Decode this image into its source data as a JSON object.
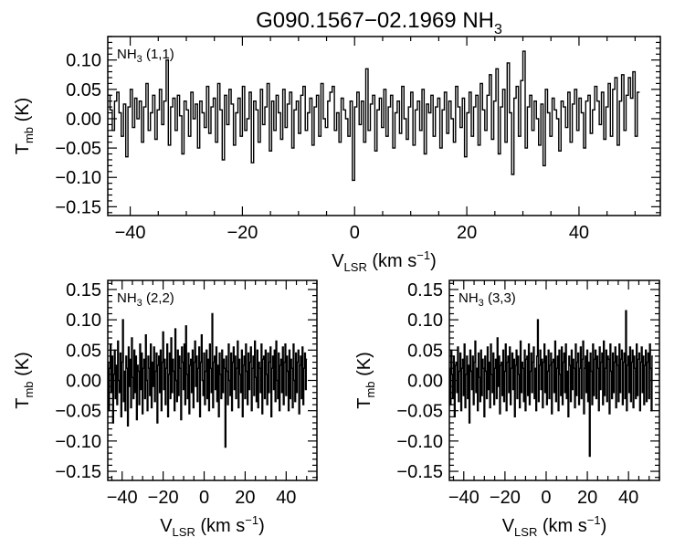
{
  "figure": {
    "title": "G090.1567−02.1969 NH",
    "title_sub": "3"
  },
  "chart_data": [
    {
      "type": "line",
      "step": true,
      "panel_label": "NH",
      "panel_label_sub": "3",
      "panel_label_suffix": " (1,1)",
      "xlabel": "V",
      "xlabel_sub": "LSR",
      "xlabel_suffix": " (km s",
      "xlabel_sup": "−1",
      "xlabel_end": ")",
      "ylabel": "T",
      "ylabel_sub": "mb",
      "ylabel_suffix": " (K)",
      "xlim": [
        -44,
        54.5
      ],
      "ylim": [
        -0.165,
        0.14
      ],
      "xticks": [
        -40,
        -20,
        0,
        20,
        40
      ],
      "xtick_labels": [
        "−40",
        "−20",
        "0",
        "20",
        "40"
      ],
      "yticks": [
        -0.15,
        -0.1,
        -0.05,
        0.0,
        0.05,
        0.1
      ],
      "ytick_labels": [
        "−0.15",
        "−0.10",
        "−0.05",
        "0.00",
        "0.05",
        "0.10"
      ],
      "x_range": [
        -44,
        54.5
      ],
      "x_step": 0.4,
      "y": [
        0.04,
        0.015,
        -0.02,
        0.03,
        0.045,
        0.01,
        -0.03,
        0.025,
        -0.065,
        0.02,
        0.05,
        -0.015,
        0.035,
        0.0,
        0.03,
        -0.04,
        0.02,
        0.06,
        -0.02,
        0.01,
        0.04,
        -0.035,
        0.015,
        0.05,
        -0.01,
        0.03,
        0.1,
        -0.045,
        0.02,
        0.035,
        -0.02,
        0.04,
        0.005,
        -0.06,
        0.03,
        0.015,
        -0.03,
        0.045,
        0.0,
        0.025,
        -0.05,
        0.03,
        0.01,
        -0.015,
        0.055,
        -0.025,
        0.02,
        0.035,
        -0.04,
        0.06,
        0.015,
        -0.07,
        0.04,
        -0.01,
        0.05,
        0.025,
        -0.045,
        0.01,
        0.035,
        -0.03,
        0.055,
        -0.02,
        0.0,
        0.045,
        -0.075,
        0.03,
        0.015,
        -0.04,
        0.05,
        -0.01,
        0.02,
        0.06,
        -0.055,
        0.03,
        -0.02,
        0.04,
        0.01,
        -0.035,
        0.05,
        -0.015,
        0.025,
        0.045,
        -0.05,
        0.015,
        0.03,
        -0.025,
        0.04,
        0.055,
        -0.02,
        0.01,
        0.035,
        -0.045,
        0.02,
        0.04,
        -0.03,
        0.06,
        0.0,
        -0.015,
        0.03,
        0.045,
        0.055,
        -0.02,
        0.01,
        -0.04,
        0.035,
        0.015,
        0.0,
        -0.03,
        0.03,
        -0.105,
        0.02,
        0.045,
        -0.01,
        0.03,
        -0.04,
        0.085,
        -0.02,
        0.025,
        0.04,
        -0.055,
        0.015,
        0.035,
        -0.015,
        0.05,
        -0.03,
        0.02,
        0.04,
        -0.05,
        0.01,
        0.03,
        -0.025,
        0.055,
        0.0,
        -0.035,
        0.02,
        0.045,
        -0.045,
        0.015,
        0.03,
        -0.02,
        0.05,
        -0.06,
        0.025,
        0.01,
        0.04,
        -0.03,
        0.02,
        0.035,
        -0.05,
        0.015,
        0.045,
        -0.025,
        0.03,
        0.0,
        -0.04,
        0.055,
        0.02,
        -0.015,
        0.035,
        -0.065,
        0.01,
        0.045,
        -0.03,
        0.02,
        0.04,
        -0.045,
        0.06,
        0.015,
        -0.02,
        0.04,
        0.075,
        -0.035,
        0.03,
        0.085,
        -0.06,
        0.02,
        0.05,
        -0.04,
        0.095,
        0.01,
        -0.095,
        0.035,
        0.055,
        -0.03,
        0.065,
        0.115,
        -0.05,
        0.02,
        0.04,
        -0.02,
        0.03,
        0.0,
        -0.045,
        0.025,
        -0.08,
        0.05,
        0.01,
        -0.03,
        0.035,
        0.015,
        0.0,
        -0.055,
        0.03,
        0.02,
        -0.015,
        0.045,
        -0.04,
        0.025,
        0.05,
        -0.02,
        0.035,
        0.01,
        -0.05,
        0.03,
        0.04,
        -0.025,
        0.015,
        0.055,
        0.03,
        -0.01,
        0.045,
        -0.035,
        0.02,
        0.06,
        -0.03,
        0.05,
        0.07,
        -0.045,
        0.03,
        0.075,
        -0.02,
        0.04,
        0.07,
        0.035,
        0.08,
        -0.03,
        0.045
      ]
    },
    {
      "type": "line",
      "step": true,
      "panel_label": "NH",
      "panel_label_sub": "3",
      "panel_label_suffix": " (2,2)",
      "xlabel": "V",
      "xlabel_sub": "LSR",
      "xlabel_suffix": " (km s",
      "xlabel_sup": "−1",
      "xlabel_end": ")",
      "ylabel": "T",
      "ylabel_sub": "mb",
      "ylabel_suffix": " (K)",
      "xlim": [
        -47,
        55
      ],
      "ylim": [
        -0.165,
        0.165
      ],
      "xticks": [
        -40,
        -20,
        0,
        20,
        40
      ],
      "xtick_labels": [
        "−40",
        "−20",
        "0",
        "20",
        "40"
      ],
      "yticks": [
        -0.15,
        -0.1,
        -0.05,
        0.0,
        0.05,
        0.1,
        0.15
      ],
      "ytick_labels": [
        "−0.15",
        "−0.10",
        "−0.05",
        "0.00",
        "0.05",
        "0.10",
        "0.15"
      ],
      "x_range": [
        -47,
        55
      ],
      "x_step": 0.4,
      "y": [
        0.03,
        -0.05,
        0.02,
        0.06,
        -0.02,
        0.04,
        -0.07,
        0.01,
        0.05,
        -0.03,
        0.025,
        -0.04,
        0.065,
        0.0,
        -0.02,
        0.045,
        -0.06,
        0.03,
        0.1,
        -0.035,
        0.015,
        -0.05,
        0.04,
        0.02,
        -0.075,
        0.055,
        -0.01,
        0.035,
        -0.045,
        0.07,
        0.005,
        -0.03,
        0.05,
        -0.02,
        0.04,
        -0.065,
        0.025,
        0.015,
        -0.04,
        0.06,
        -0.015,
        0.045,
        -0.055,
        0.02,
        0.035,
        -0.03,
        0.075,
        0.0,
        -0.05,
        0.04,
        0.02,
        -0.025,
        0.06,
        -0.045,
        0.03,
        -0.01,
        0.055,
        -0.035,
        0.015,
        0.045,
        -0.07,
        0.025,
        0.04,
        -0.02,
        0.05,
        -0.05,
        0.03,
        0.08,
        -0.015,
        0.035,
        -0.04,
        0.02,
        0.06,
        -0.06,
        0.01,
        0.045,
        -0.03,
        0.07,
        -0.02,
        0.035,
        0.015,
        -0.05,
        0.085,
        0.0,
        -0.035,
        0.05,
        -0.025,
        0.04,
        0.02,
        -0.065,
        0.055,
        0.03,
        -0.015,
        0.06,
        -0.04,
        0.09,
        0.01,
        -0.03,
        0.045,
        -0.055,
        0.025,
        0.035,
        -0.02,
        0.05,
        -0.045,
        0.03,
        0.065,
        -0.01,
        0.04,
        -0.035,
        0.02,
        0.055,
        -0.06,
        0.03,
        0.075,
        0.0,
        -0.025,
        0.045,
        -0.04,
        0.015,
        0.05,
        -0.03,
        0.035,
        -0.05,
        0.06,
        0.02,
        -0.02,
        0.11,
        -0.045,
        0.03,
        0.04,
        -0.015,
        0.055,
        -0.035,
        0.025,
        -0.06,
        0.045,
        0.01,
        -0.03,
        0.05,
        -0.02,
        0.035,
        0.02,
        -0.11,
        0.04,
        0.015,
        -0.04,
        0.06,
        0.0,
        -0.025,
        0.045,
        -0.05,
        0.03,
        0.055,
        -0.015,
        0.04,
        -0.03,
        0.02,
        0.065,
        -0.045,
        0.035,
        0.01,
        -0.02,
        0.05,
        -0.06,
        0.025,
        0.04,
        -0.03,
        0.06,
        0.015,
        -0.04,
        0.045,
        -0.015,
        0.03,
        0.055,
        -0.05,
        0.02,
        0.04,
        -0.025,
        0.065,
        0.005,
        -0.035,
        0.05,
        -0.045,
        0.03,
        0.02,
        -0.02,
        0.06,
        -0.055,
        0.035,
        0.04,
        -0.03,
        0.05,
        0.01,
        -0.04,
        0.045,
        -0.02,
        0.03,
        0.055,
        -0.06,
        0.02,
        0.04,
        -0.015,
        0.05,
        -0.035,
        0.065,
        0.0,
        -0.03,
        0.045,
        -0.05,
        0.025,
        0.035,
        -0.02,
        0.055,
        -0.04,
        0.03,
        0.06,
        -0.025,
        0.04,
        0.015,
        -0.05,
        0.05,
        -0.03,
        0.035,
        0.02,
        -0.045,
        0.06,
        0.0,
        -0.035,
        0.045,
        -0.02,
        0.03,
        0.05,
        -0.055,
        0.025,
        0.04,
        -0.03,
        0.055,
        -0.04,
        0.02,
        0.045,
        -0.015,
        0.035
      ]
    },
    {
      "type": "line",
      "step": true,
      "panel_label": "NH",
      "panel_label_sub": "3",
      "panel_label_suffix": " (3,3)",
      "xlabel": "V",
      "xlabel_sub": "LSR",
      "xlabel_suffix": " (km s",
      "xlabel_sup": "−1",
      "xlabel_end": ")",
      "ylabel": "T",
      "ylabel_sub": "mb",
      "ylabel_suffix": " (K)",
      "xlim": [
        -47,
        55
      ],
      "ylim": [
        -0.165,
        0.165
      ],
      "xticks": [
        -40,
        -20,
        0,
        20,
        40
      ],
      "xtick_labels": [
        "−40",
        "−20",
        "0",
        "20",
        "40"
      ],
      "yticks": [
        -0.15,
        -0.1,
        -0.05,
        0.0,
        0.05,
        0.1,
        0.15
      ],
      "ytick_labels": [
        "−0.15",
        "−0.10",
        "−0.05",
        "0.00",
        "0.05",
        "0.10",
        "0.15"
      ],
      "x_range": [
        -47,
        55
      ],
      "x_step": 0.4,
      "y": [
        0.02,
        -0.04,
        0.05,
        0.01,
        -0.03,
        0.04,
        -0.06,
        0.025,
        0.03,
        -0.02,
        0.055,
        -0.035,
        0.015,
        0.045,
        -0.05,
        0.02,
        0.035,
        -0.025,
        0.06,
        -0.045,
        0.01,
        0.04,
        -0.03,
        0.025,
        -0.07,
        0.05,
        0.015,
        -0.015,
        0.04,
        -0.04,
        0.03,
        0.065,
        -0.02,
        0.02,
        -0.05,
        0.045,
        0.005,
        -0.035,
        0.05,
        -0.025,
        0.035,
        0.02,
        -0.06,
        0.04,
        0.015,
        -0.03,
        0.055,
        -0.015,
        0.03,
        -0.045,
        0.06,
        0.01,
        -0.02,
        0.045,
        -0.04,
        0.02,
        0.035,
        -0.03,
        0.07,
        -0.01,
        0.04,
        -0.055,
        0.025,
        0.03,
        -0.025,
        0.05,
        -0.035,
        0.015,
        0.06,
        -0.05,
        0.03,
        0.04,
        -0.02,
        0.055,
        -0.04,
        0.02,
        0.045,
        -0.015,
        0.035,
        -0.06,
        0.025,
        0.05,
        -0.03,
        0.04,
        0.01,
        -0.045,
        0.065,
        -0.02,
        0.03,
        0.02,
        -0.035,
        0.05,
        -0.05,
        0.035,
        0.04,
        -0.025,
        0.06,
        -0.04,
        0.015,
        0.045,
        -0.02,
        0.03,
        0.055,
        -0.03,
        0.02,
        -0.05,
        0.04,
        0.1,
        -0.035,
        0.025,
        0.05,
        -0.015,
        0.035,
        -0.045,
        0.03,
        0.06,
        -0.02,
        0.04,
        -0.04,
        0.015,
        0.05,
        -0.03,
        0.025,
        0.045,
        -0.055,
        0.03,
        0.035,
        -0.02,
        0.065,
        -0.035,
        0.02,
        0.04,
        -0.05,
        0.05,
        0.01,
        -0.025,
        0.055,
        -0.04,
        0.03,
        0.045,
        -0.02,
        0.06,
        -0.03,
        0.015,
        -0.06,
        0.04,
        0.025,
        -0.035,
        0.05,
        -0.015,
        0.035,
        0.02,
        -0.045,
        0.06,
        -0.025,
        0.03,
        0.045,
        -0.04,
        0.02,
        0.055,
        -0.03,
        0.035,
        0.065,
        -0.055,
        0.02,
        0.04,
        -0.02,
        0.05,
        -0.035,
        0.03,
        -0.125,
        0.045,
        0.015,
        -0.04,
        0.06,
        -0.025,
        0.035,
        0.05,
        -0.03,
        0.04,
        0.02,
        -0.05,
        0.055,
        -0.015,
        0.03,
        0.045,
        -0.04,
        0.065,
        -0.025,
        0.02,
        0.05,
        -0.035,
        0.04,
        0.035,
        -0.055,
        0.06,
        0.015,
        -0.03,
        0.045,
        -0.02,
        0.03,
        0.055,
        -0.045,
        0.04,
        0.025,
        -0.035,
        0.06,
        -0.02,
        0.035,
        0.05,
        -0.04,
        0.03,
        0.045,
        -0.03,
        0.115,
        -0.05,
        0.025,
        0.04,
        -0.02,
        0.055,
        -0.035,
        0.03,
        0.05,
        -0.045,
        0.04,
        0.02,
        -0.03,
        0.06,
        -0.025,
        0.035,
        0.045,
        -0.05,
        0.03,
        0.055,
        -0.02,
        0.04,
        -0.04,
        0.025,
        0.05,
        -0.035,
        0.03,
        0.045,
        -0.03,
        0.06,
        0.02,
        -0.05,
        0.04
      ]
    }
  ]
}
